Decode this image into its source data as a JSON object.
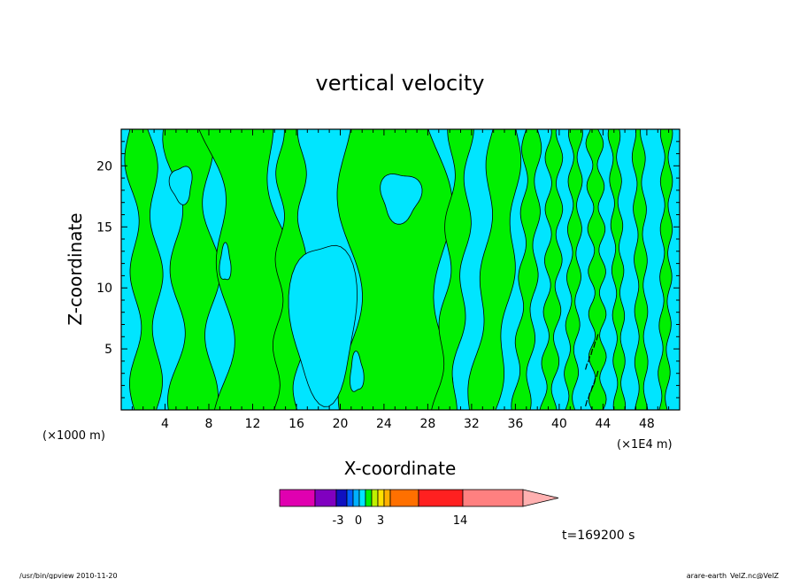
{
  "chart_data": {
    "type": "heatmap",
    "title": "vertical velocity",
    "xlabel": "X-coordinate",
    "ylabel": "Z-coordinate",
    "x_unit_left": "(×1000 m)",
    "x_unit_right": "(×1E4 m)",
    "xlim": [
      0,
      51
    ],
    "ylim": [
      0,
      23
    ],
    "x_ticks": [
      4,
      8,
      12,
      16,
      20,
      24,
      28,
      32,
      36,
      40,
      44,
      48
    ],
    "y_ticks": [
      5,
      10,
      15,
      20
    ],
    "regions": [
      {
        "name": "negative",
        "color": "#00e5ff"
      },
      {
        "name": "positive",
        "color": "#00f000"
      }
    ],
    "colorbar": {
      "colors": [
        "#e000b0",
        "#8000c0",
        "#1010c0",
        "#0060ff",
        "#00b0ff",
        "#00e5ff",
        "#00f000",
        "#c0f000",
        "#ffe000",
        "#ffb000",
        "#ff7000",
        "#ff2020",
        "#ff8080",
        "#ffb0b0"
      ],
      "tick_labels": [
        "-3",
        "0",
        "3",
        "14"
      ]
    },
    "time_label": "t=169200 s"
  },
  "footer": {
    "left": "/usr/bin/gpview   2010-11-20",
    "right": "arare-earth_VelZ.nc@VelZ"
  }
}
